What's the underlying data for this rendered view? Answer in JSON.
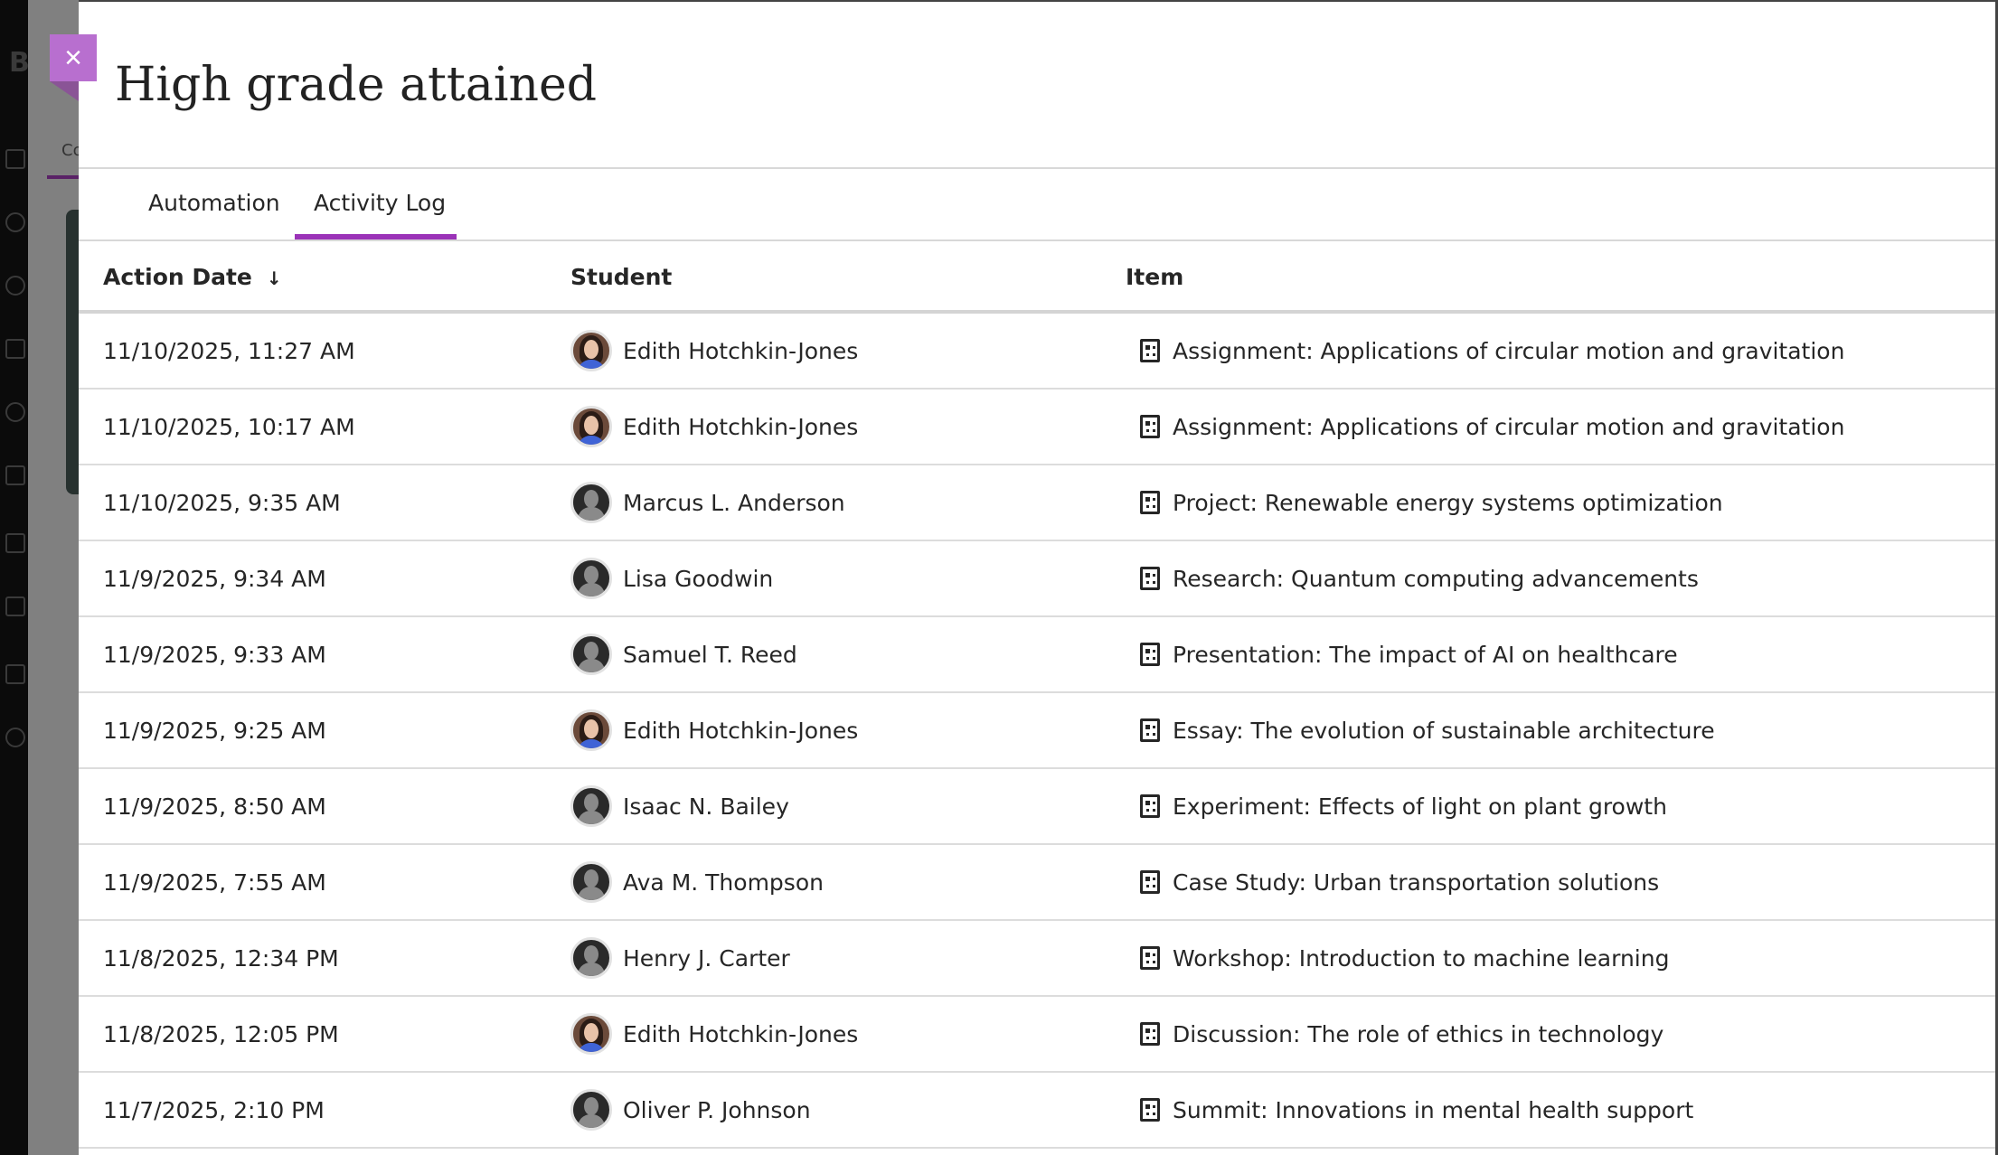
{
  "dialog": {
    "title": "High grade attained",
    "close_label": "×",
    "tabs": [
      {
        "label": "Automation",
        "active": false
      },
      {
        "label": "Activity Log",
        "active": true
      }
    ],
    "accent_color": "#9b33b8"
  },
  "background": {
    "logo_letter": "B",
    "tab_partial": "Co"
  },
  "table": {
    "headers": {
      "date": "Action Date",
      "student": "Student",
      "item": "Item",
      "sort_icon": "↓"
    },
    "rows": [
      {
        "date": "11/10/2025, 11:27 AM",
        "student": "Edith Hotchkin-Jones",
        "photo": true,
        "item": "Assignment: Applications of circular motion and gravitation"
      },
      {
        "date": "11/10/2025, 10:17 AM",
        "student": "Edith Hotchkin-Jones",
        "photo": true,
        "item": "Assignment: Applications of circular motion and gravitation"
      },
      {
        "date": "11/10/2025, 9:35 AM",
        "student": "Marcus L. Anderson",
        "photo": false,
        "item": "Project: Renewable energy systems optimization"
      },
      {
        "date": "11/9/2025, 9:34 AM",
        "student": "Lisa Goodwin",
        "photo": false,
        "item": "Research: Quantum computing advancements"
      },
      {
        "date": "11/9/2025, 9:33 AM",
        "student": "Samuel T. Reed",
        "photo": false,
        "item": "Presentation: The impact of AI on healthcare"
      },
      {
        "date": "11/9/2025, 9:25 AM",
        "student": "Edith Hotchkin-Jones",
        "photo": true,
        "item": "Essay: The evolution of sustainable architecture"
      },
      {
        "date": "11/9/2025, 8:50 AM",
        "student": "Isaac N. Bailey",
        "photo": false,
        "item": "Experiment: Effects of light on plant growth"
      },
      {
        "date": "11/9/2025, 7:55 AM",
        "student": "Ava M. Thompson",
        "photo": false,
        "item": "Case Study: Urban transportation solutions"
      },
      {
        "date": "11/8/2025, 12:34 PM",
        "student": "Henry J. Carter",
        "photo": false,
        "item": "Workshop: Introduction to machine learning"
      },
      {
        "date": "11/8/2025, 12:05 PM",
        "student": "Edith Hotchkin-Jones",
        "photo": true,
        "item": "Discussion: The role of ethics in technology"
      },
      {
        "date": "11/7/2025, 2:10 PM",
        "student": "Oliver P. Johnson",
        "photo": false,
        "item": "Summit: Innovations in mental health support"
      }
    ]
  }
}
